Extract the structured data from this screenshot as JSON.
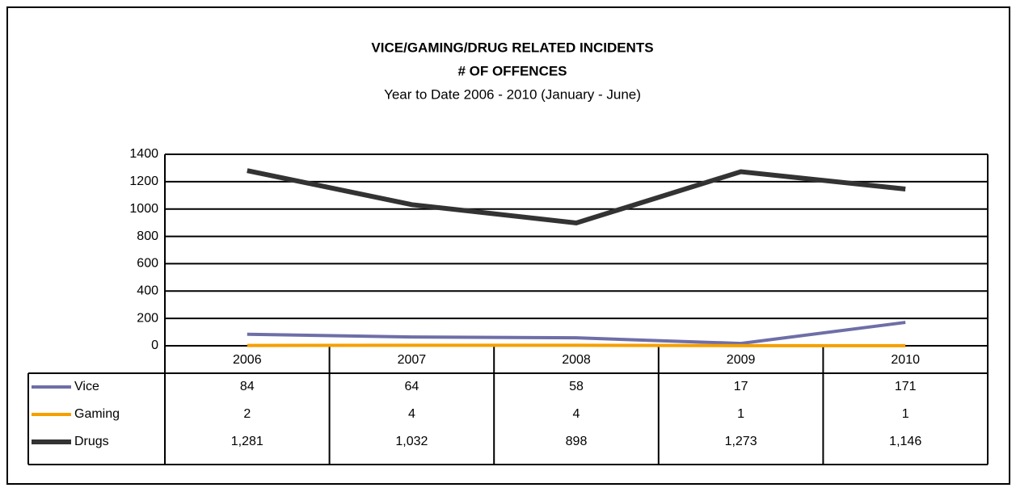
{
  "chart_data": {
    "type": "line",
    "title": "VICE/GAMING/DRUG RELATED INCIDENTS",
    "subtitle_bold": "# OF OFFENCES",
    "subtitle": "Year to Date 2006 - 2010 (January - June)",
    "categories": [
      "2006",
      "2007",
      "2008",
      "2009",
      "2010"
    ],
    "series": [
      {
        "name": "Vice",
        "color": "#6e6ea8",
        "values": [
          84,
          64,
          58,
          17,
          171
        ]
      },
      {
        "name": "Gaming",
        "color": "#f5a000",
        "values": [
          2,
          4,
          4,
          1,
          1
        ]
      },
      {
        "name": "Drugs",
        "color": "#333333",
        "values": [
          1281,
          1032,
          898,
          1273,
          1146
        ],
        "value_labels": [
          "1,281",
          "1,032",
          "898",
          "1,273",
          "1,146"
        ]
      }
    ],
    "ylim": [
      0,
      1400
    ],
    "yticks": [
      0,
      200,
      400,
      600,
      800,
      1000,
      1200,
      1400
    ],
    "grid": true
  }
}
